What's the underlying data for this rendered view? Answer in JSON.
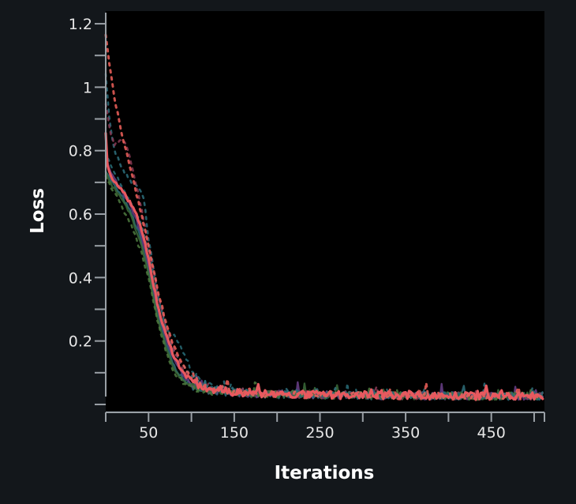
{
  "chart_data": {
    "type": "line",
    "title": "",
    "xlabel": "Iterations",
    "ylabel": "Loss",
    "xlim": [
      0,
      512
    ],
    "ylim": [
      -0.02,
      1.24
    ],
    "x_ticks": [
      50,
      150,
      250,
      350,
      450
    ],
    "x_tick_labels": [
      "50",
      "150",
      "250",
      "350",
      "450"
    ],
    "x_minor_ticks": [
      0,
      100,
      200,
      300,
      400,
      500
    ],
    "y_ticks": [
      0.2,
      0.4,
      0.6,
      0.8,
      1.0,
      1.2
    ],
    "y_tick_labels": [
      "0.2",
      "0.4",
      "0.6",
      "0.8",
      "1",
      "1.2"
    ],
    "y_minor_ticks": [
      0.0,
      0.1,
      0.3,
      0.5,
      0.7,
      0.9,
      1.1
    ],
    "grid": false,
    "legend": "none",
    "colors": {
      "page_background": "#13171b",
      "plot_background": "#000000",
      "axis": "#9aa0a6"
    },
    "series": [
      {
        "style": "solid",
        "color": "#e8595f",
        "width": 3.2,
        "x": [
          0,
          2,
          5,
          10,
          20,
          30,
          40,
          50,
          60,
          70,
          80,
          90,
          100,
          110,
          120,
          130,
          150,
          200,
          250,
          300,
          350,
          400,
          450,
          500,
          511
        ],
        "y": [
          0.86,
          0.76,
          0.72,
          0.7,
          0.67,
          0.63,
          0.57,
          0.46,
          0.32,
          0.22,
          0.15,
          0.1,
          0.075,
          0.06,
          0.05,
          0.045,
          0.038,
          0.032,
          0.03,
          0.029,
          0.028,
          0.027,
          0.026,
          0.026,
          0.026
        ]
      },
      {
        "style": "solid",
        "color": "#2e6e7a",
        "width": 2.4,
        "x": [
          0,
          5,
          10,
          20,
          30,
          40,
          50,
          60,
          70,
          80,
          90,
          100,
          110,
          120,
          150,
          200,
          300,
          400,
          511
        ],
        "y": [
          0.74,
          0.71,
          0.69,
          0.65,
          0.6,
          0.53,
          0.42,
          0.29,
          0.19,
          0.12,
          0.08,
          0.06,
          0.05,
          0.045,
          0.036,
          0.031,
          0.028,
          0.027,
          0.026
        ]
      },
      {
        "style": "solid",
        "color": "#6a3f8a",
        "width": 2.4,
        "x": [
          0,
          5,
          10,
          20,
          30,
          40,
          50,
          60,
          70,
          80,
          90,
          100,
          110,
          120,
          150,
          200,
          300,
          400,
          511
        ],
        "y": [
          0.78,
          0.74,
          0.71,
          0.67,
          0.62,
          0.55,
          0.44,
          0.31,
          0.21,
          0.14,
          0.09,
          0.065,
          0.055,
          0.047,
          0.037,
          0.032,
          0.029,
          0.027,
          0.026
        ]
      },
      {
        "style": "solid",
        "color": "#3b6b3a",
        "width": 2.4,
        "x": [
          0,
          5,
          10,
          20,
          30,
          40,
          50,
          60,
          70,
          80,
          90,
          100,
          110,
          120,
          150,
          200,
          300,
          400,
          511
        ],
        "y": [
          0.73,
          0.7,
          0.68,
          0.64,
          0.59,
          0.52,
          0.41,
          0.28,
          0.18,
          0.11,
          0.075,
          0.058,
          0.05,
          0.044,
          0.036,
          0.031,
          0.028,
          0.027,
          0.026
        ]
      },
      {
        "style": "dashed",
        "color": "#f0605a",
        "width": 3,
        "x": [
          0,
          5,
          10,
          20,
          30,
          40,
          50,
          60,
          70,
          80,
          90,
          100,
          110,
          120,
          150,
          200,
          300,
          400,
          511
        ],
        "y": [
          1.17,
          1.06,
          0.97,
          0.84,
          0.73,
          0.62,
          0.5,
          0.37,
          0.26,
          0.18,
          0.12,
          0.085,
          0.065,
          0.055,
          0.04,
          0.033,
          0.029,
          0.027,
          0.026
        ]
      },
      {
        "style": "dashed",
        "color": "#2d6f7d",
        "width": 2.6,
        "x": [
          0,
          5,
          10,
          20,
          30,
          40,
          45,
          50,
          60,
          70,
          80,
          90,
          100,
          110,
          120,
          150,
          200,
          300,
          400,
          511
        ],
        "y": [
          1.04,
          0.88,
          0.8,
          0.74,
          0.7,
          0.68,
          0.64,
          0.52,
          0.36,
          0.24,
          0.16,
          0.12,
          0.09,
          0.07,
          0.055,
          0.04,
          0.033,
          0.029,
          0.027,
          0.026
        ]
      },
      {
        "style": "dashed",
        "color": "#8a3a55",
        "width": 2.6,
        "x": [
          0,
          5,
          10,
          20,
          25,
          30,
          40,
          50,
          60,
          70,
          80,
          90,
          100,
          110,
          120,
          150,
          200,
          300,
          400,
          511
        ],
        "y": [
          0.95,
          0.86,
          0.82,
          0.83,
          0.81,
          0.76,
          0.64,
          0.5,
          0.36,
          0.25,
          0.17,
          0.11,
          0.08,
          0.065,
          0.055,
          0.04,
          0.033,
          0.029,
          0.027,
          0.026
        ]
      },
      {
        "style": "dashed",
        "color": "#4d7a3e",
        "width": 2.6,
        "x": [
          0,
          5,
          10,
          20,
          30,
          40,
          50,
          60,
          70,
          80,
          90,
          100,
          110,
          120,
          150,
          200,
          300,
          400,
          511
        ],
        "y": [
          0.72,
          0.69,
          0.67,
          0.62,
          0.56,
          0.49,
          0.4,
          0.27,
          0.17,
          0.1,
          0.07,
          0.055,
          0.048,
          0.043,
          0.036,
          0.031,
          0.028,
          0.027,
          0.026
        ]
      },
      {
        "style": "dashed",
        "color": "#286d78",
        "width": 2.4,
        "x": [
          0,
          5,
          10,
          20,
          30,
          40,
          50,
          60,
          70,
          75,
          80,
          90,
          100,
          110,
          120,
          150,
          200,
          300,
          400,
          511
        ],
        "y": [
          0.8,
          0.76,
          0.73,
          0.68,
          0.63,
          0.58,
          0.48,
          0.35,
          0.24,
          0.23,
          0.22,
          0.17,
          0.11,
          0.075,
          0.058,
          0.04,
          0.033,
          0.029,
          0.027,
          0.026
        ]
      }
    ]
  }
}
